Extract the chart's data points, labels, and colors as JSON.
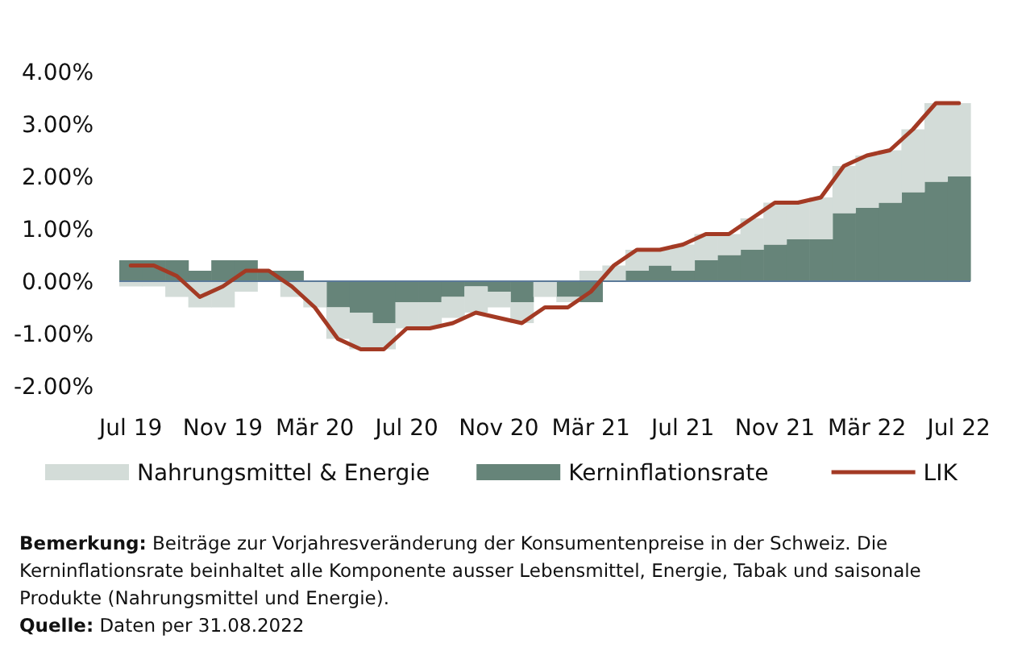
{
  "chart_data": {
    "type": "bar",
    "stacked": true,
    "categories": [
      "Jul 19",
      null,
      null,
      null,
      "Nov 19",
      null,
      null,
      null,
      "Mär 20",
      null,
      null,
      null,
      "Jul 20",
      null,
      null,
      null,
      "Nov 20",
      null,
      null,
      null,
      "Mär 21",
      null,
      null,
      null,
      "Jul 21",
      null,
      null,
      null,
      "Nov 21",
      null,
      null,
      null,
      "Mär 22",
      null,
      null,
      null,
      "Jul 22"
    ],
    "series": [
      {
        "name": "Kerninflationsrate",
        "color": "#668479",
        "values": [
          0.4,
          0.4,
          0.4,
          0.2,
          0.4,
          0.4,
          0.2,
          0.2,
          0,
          -0.5,
          -0.6,
          -0.8,
          -0.4,
          -0.4,
          -0.3,
          -0.1,
          -0.2,
          -0.4,
          0,
          -0.3,
          -0.4,
          0,
          0.2,
          0.3,
          0.2,
          0.4,
          0.5,
          0.6,
          0.7,
          0.8,
          0.8,
          1.3,
          1.4,
          1.5,
          1.7,
          1.9,
          2.0
        ]
      },
      {
        "name": "Nahrungsmittel & Energie",
        "color": "#d3dcd8",
        "values": [
          -0.1,
          -0.1,
          -0.3,
          -0.5,
          -0.5,
          -0.2,
          0,
          -0.3,
          -0.5,
          -0.6,
          -0.7,
          -0.5,
          -0.5,
          -0.5,
          -0.4,
          -0.5,
          -0.3,
          -0.4,
          -0.3,
          -0.1,
          0.2,
          0.3,
          0.4,
          0.3,
          0.5,
          0.5,
          0.4,
          0.6,
          0.8,
          0.7,
          0.8,
          0.9,
          1.0,
          1.0,
          1.2,
          1.5,
          1.4
        ]
      },
      {
        "name": "LIK",
        "type": "line",
        "color": "#a33a24",
        "values": [
          0.3,
          0.3,
          0.1,
          -0.3,
          -0.1,
          0.2,
          0.2,
          -0.1,
          -0.5,
          -1.1,
          -1.3,
          -1.3,
          -0.9,
          -0.9,
          -0.8,
          -0.6,
          -0.7,
          -0.8,
          -0.5,
          -0.5,
          -0.2,
          0.3,
          0.6,
          0.6,
          0.7,
          0.9,
          0.9,
          1.2,
          1.5,
          1.5,
          1.6,
          2.2,
          2.4,
          2.5,
          2.9,
          3.4,
          3.4
        ]
      }
    ],
    "ylim": [
      -2,
      4
    ],
    "yticks": [
      {
        "value": -2,
        "label": "-2.00%"
      },
      {
        "value": -1,
        "label": "-1.00%"
      },
      {
        "value": 0,
        "label": "0.00%"
      },
      {
        "value": 1,
        "label": "1.00%"
      },
      {
        "value": 2,
        "label": "2.00%"
      },
      {
        "value": 3,
        "label": "3.00%"
      },
      {
        "value": 4,
        "label": "4.00%"
      }
    ],
    "grid": false,
    "ref_lines": [
      {
        "axis": "y",
        "value": 0,
        "color": "#5b7a99"
      }
    ],
    "legend": "bottom",
    "annotations": [
      "Bemerkung: Beiträge zur Vorjahresveränderung der Konsumentenpreise in der Schweiz. Die Kerninflationsrate beinhaltet alle Komponente ausser Lebensmittel, Energie, Tabak und saisonale Produkte (Nahrungsmittel und Energie).",
      "Quelle: Daten per 31.08.2022"
    ]
  }
}
